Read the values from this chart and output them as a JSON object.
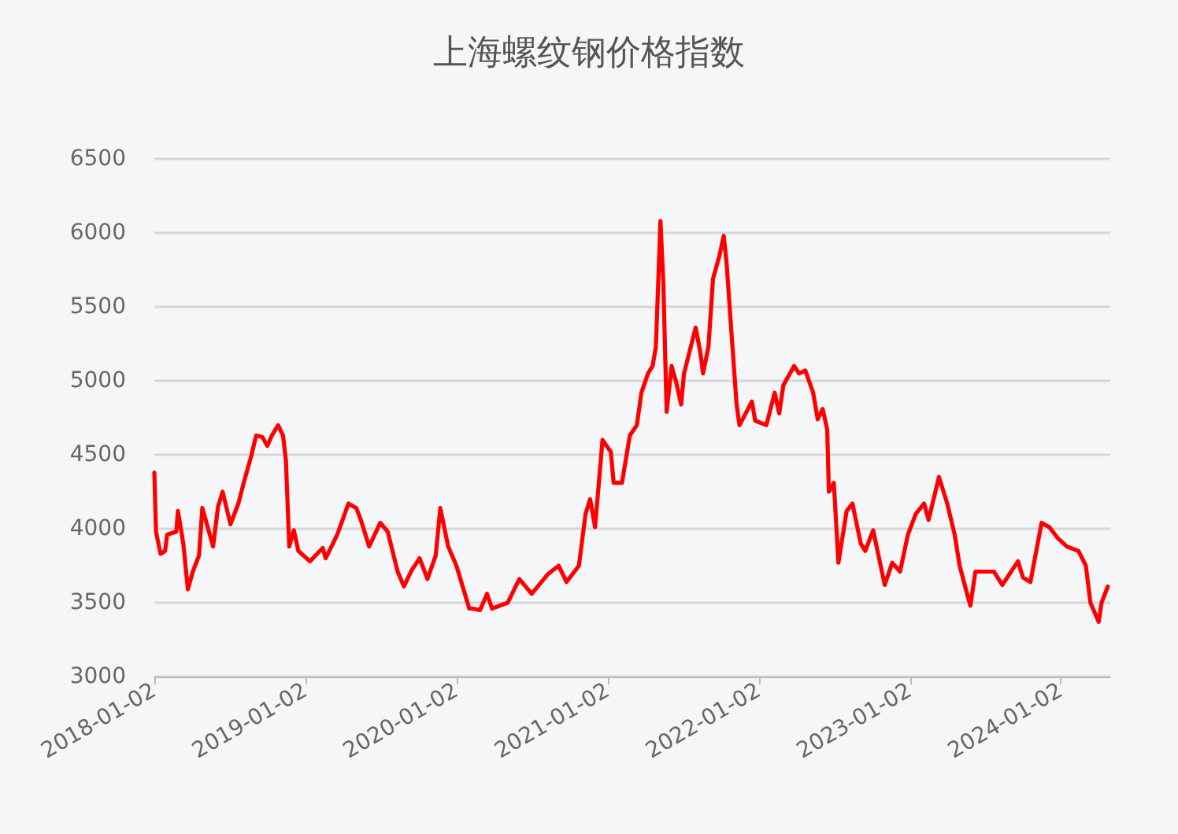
{
  "chart_data": {
    "type": "line",
    "title": "上海螺纹钢价格指数",
    "grid": "y",
    "marker": "none",
    "line_style": "solid",
    "xlim": [
      "2018-01-02",
      "2024-04-30"
    ],
    "xticks": [
      "2018-01-02",
      "2019-01-02",
      "2020-01-02",
      "2021-01-02",
      "2022-01-02",
      "2023-01-02",
      "2024-01-02"
    ],
    "ylim": [
      3000,
      6500
    ],
    "yticks": [
      3000,
      3500,
      4000,
      4500,
      5000,
      5500,
      6000,
      6500
    ],
    "x": [
      "2018-01-02",
      "2018-01-06",
      "2018-01-17",
      "2018-01-28",
      "2018-02-02",
      "2018-02-24",
      "2018-02-28",
      "2018-03-13",
      "2018-03-24",
      "2018-04-05",
      "2018-04-20",
      "2018-04-28",
      "2018-05-13",
      "2018-05-24",
      "2018-06-05",
      "2018-06-16",
      "2018-07-05",
      "2018-07-24",
      "2018-08-05",
      "2018-08-24",
      "2018-09-05",
      "2018-09-20",
      "2018-10-02",
      "2018-10-13",
      "2018-10-28",
      "2018-11-09",
      "2018-11-16",
      "2018-11-24",
      "2018-12-05",
      "2018-12-16",
      "2019-01-13",
      "2019-02-13",
      "2019-02-20",
      "2019-03-20",
      "2019-04-02",
      "2019-04-16",
      "2019-05-05",
      "2019-05-16",
      "2019-06-05",
      "2019-07-02",
      "2019-07-20",
      "2019-08-13",
      "2019-08-28",
      "2019-09-16",
      "2019-10-05",
      "2019-10-24",
      "2019-11-13",
      "2019-11-24",
      "2019-12-13",
      "2020-01-02",
      "2020-02-02",
      "2020-02-09",
      "2020-02-28",
      "2020-03-16",
      "2020-03-28",
      "2020-05-05",
      "2020-06-02",
      "2020-07-02",
      "2020-08-09",
      "2020-09-05",
      "2020-09-24",
      "2020-10-24",
      "2020-11-09",
      "2020-11-20",
      "2020-12-02",
      "2020-12-20",
      "2021-01-09",
      "2021-01-16",
      "2021-02-05",
      "2021-02-24",
      "2021-03-13",
      "2021-03-24",
      "2021-04-09",
      "2021-04-20",
      "2021-04-28",
      "2021-05-09",
      "2021-05-16",
      "2021-05-24",
      "2021-06-05",
      "2021-06-16",
      "2021-06-28",
      "2021-07-05",
      "2021-08-02",
      "2021-08-13",
      "2021-08-20",
      "2021-09-02",
      "2021-09-13",
      "2021-09-28",
      "2021-10-09",
      "2021-10-16",
      "2021-10-28",
      "2021-11-09",
      "2021-11-16",
      "2021-12-16",
      "2021-12-24",
      "2022-01-20",
      "2022-02-09",
      "2022-02-20",
      "2022-03-02",
      "2022-03-28",
      "2022-04-09",
      "2022-04-24",
      "2022-05-13",
      "2022-05-24",
      "2022-06-05",
      "2022-06-16",
      "2022-06-20",
      "2022-07-02",
      "2022-07-13",
      "2022-08-02",
      "2022-08-16",
      "2022-09-05",
      "2022-09-16",
      "2022-10-05",
      "2022-11-02",
      "2022-11-20",
      "2022-12-09",
      "2022-12-28",
      "2023-01-16",
      "2023-02-05",
      "2023-02-16",
      "2023-03-13",
      "2023-04-02",
      "2023-04-20",
      "2023-05-02",
      "2023-05-20",
      "2023-05-28",
      "2023-06-09",
      "2023-07-05",
      "2023-07-24",
      "2023-08-13",
      "2023-09-20",
      "2023-10-02",
      "2023-10-20",
      "2023-11-16",
      "2023-12-05",
      "2023-12-24",
      "2024-01-16",
      "2024-02-13",
      "2024-03-02",
      "2024-03-13",
      "2024-04-02",
      "2024-04-09",
      "2024-04-24"
    ],
    "series": [
      {
        "color": "#ff0000",
        "values": [
          4380,
          3980,
          3830,
          3850,
          3960,
          3980,
          4120,
          3900,
          3590,
          3710,
          3820,
          4140,
          3990,
          3880,
          4150,
          4250,
          4030,
          4170,
          4300,
          4490,
          4630,
          4620,
          4560,
          4630,
          4700,
          4630,
          4460,
          3880,
          3990,
          3850,
          3780,
          3870,
          3800,
          3960,
          4060,
          4170,
          4140,
          4060,
          3880,
          4040,
          3980,
          3710,
          3610,
          3720,
          3800,
          3660,
          3820,
          4140,
          3880,
          3750,
          3460,
          3460,
          3450,
          3560,
          3460,
          3500,
          3660,
          3560,
          3690,
          3750,
          3640,
          3750,
          4100,
          4200,
          4010,
          4600,
          4520,
          4310,
          4310,
          4630,
          4700,
          4920,
          5050,
          5100,
          5230,
          6080,
          5660,
          4790,
          5100,
          4990,
          4840,
          5050,
          5360,
          5200,
          5050,
          5230,
          5690,
          5840,
          5980,
          5790,
          5310,
          4840,
          4700,
          4860,
          4730,
          4700,
          4920,
          4780,
          4970,
          5100,
          5050,
          5070,
          4920,
          4740,
          4810,
          4670,
          4250,
          4310,
          3770,
          4120,
          4170,
          3900,
          3850,
          3990,
          3620,
          3770,
          3710,
          3960,
          4100,
          4170,
          4060,
          4350,
          4170,
          3960,
          3750,
          3560,
          3480,
          3710,
          3710,
          3710,
          3620,
          3780,
          3670,
          3640,
          4040,
          4010,
          3940,
          3880,
          3850,
          3750,
          3500,
          3370,
          3500,
          3610
        ]
      }
    ]
  }
}
